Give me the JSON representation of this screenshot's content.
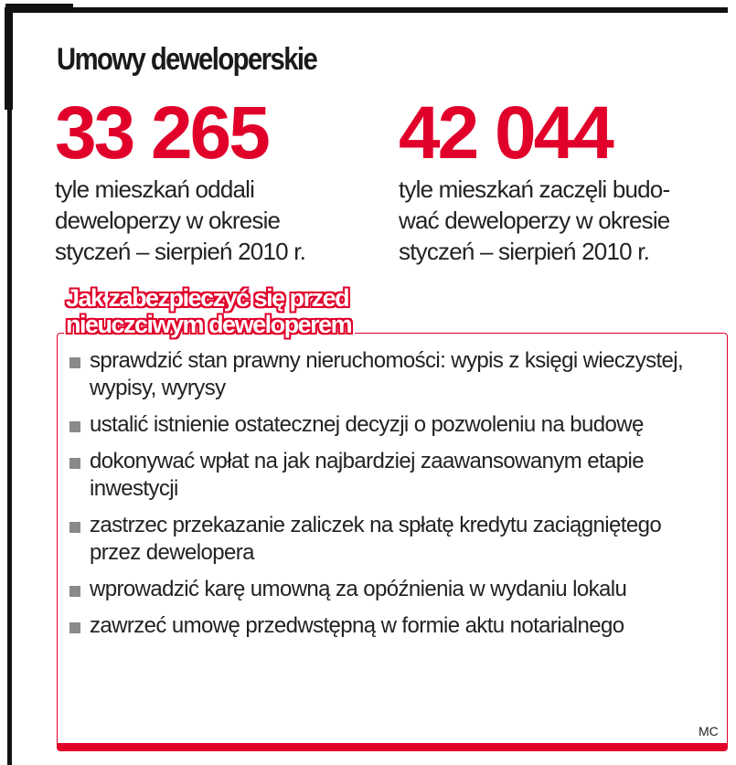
{
  "title": "Umowy deweloperskie",
  "accent_color": "#e0002a",
  "stats": [
    {
      "value": "33 265",
      "description": "tyle mieszkań oddali\ndeweloperzy w okresie\nstyczeń – sierpień 2010 r."
    },
    {
      "value": "42 044",
      "description": "tyle mieszkań zaczęli budo-\nwać deweloperzy w okresie\nstyczeń – sierpień 2010 r."
    }
  ],
  "tips": {
    "heading": "Jak zabezpieczyć się przed\nnieuczciwym deweloperem",
    "bullet_icon": "gray-square",
    "items": [
      "sprawdzić stan prawny nieruchomości: wypis z księgi wieczystej, wypisy, wyrysy",
      "ustalić istnienie ostatecznej decyzji o pozwoleniu na budowę",
      "dokonywać wpłat na jak najbardziej zaawansowanym etapie inwestycji",
      "zastrzec przekazanie zaliczek na spłatę kredytu zaciągniętego przez dewelopera",
      "wprowadzić karę umowną za opóźnienia w wydaniu lokalu",
      "zawrzeć umowę przedwstępną w formie aktu notarialnego"
    ]
  },
  "credit": "MC"
}
